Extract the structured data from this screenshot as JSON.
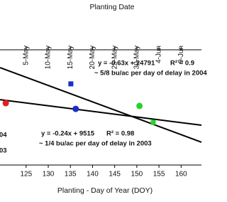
{
  "chart_data": {
    "type": "scatter",
    "title": "Planting Date",
    "xlabel": "Planting - Day of Year (DOY)",
    "xlim": [
      119.1,
      164.6
    ],
    "ylim": [
      140,
      186
    ],
    "xticks": [
      125,
      130,
      135,
      140,
      145,
      150,
      155,
      160
    ],
    "top_xticks": [
      {
        "value": 125,
        "label": "5-May"
      },
      {
        "value": 130,
        "label": "10-May"
      },
      {
        "value": 135,
        "label": "15-May"
      },
      {
        "value": 140,
        "label": "20-May"
      },
      {
        "value": 145,
        "label": "25-May"
      },
      {
        "value": 150,
        "label": "30-May"
      },
      {
        "value": 155,
        "label": "4-Jun"
      },
      {
        "value": 160,
        "label": "9-Jun"
      }
    ],
    "points": [
      {
        "x": 120.4,
        "y": 164.7,
        "color": "#e02020",
        "marker": "circle"
      },
      {
        "x": 135.1,
        "y": 172.4,
        "color": "#1a2ec8",
        "marker": "square"
      },
      {
        "x": 136.2,
        "y": 162.4,
        "color": "#1a2ec8",
        "marker": "circle"
      },
      {
        "x": 150.6,
        "y": 163.6,
        "color": "#2bd12b",
        "marker": "circle"
      },
      {
        "x": 153.7,
        "y": 157.0,
        "color": "#2bd12b",
        "marker": "square"
      }
    ],
    "trendlines": [
      {
        "x": [
          119.1,
          164.6
        ],
        "values": [
          178.9,
          149.1
        ],
        "color": "#000000"
      },
      {
        "x": [
          119.1,
          164.6
        ],
        "values": [
          166.1,
          155.9
        ],
        "color": "#000000"
      }
    ],
    "annotations": [
      "y = -0.63x + 24791",
      "R² = 0.9",
      "~ 5/8 bu/ac per day of delay in 2004",
      "y = -0.24x + 9515",
      "R² = 0.98",
      "~ 1/4 bu/ac per day of delay in 2003"
    ],
    "legend": [
      "04",
      "03"
    ]
  }
}
